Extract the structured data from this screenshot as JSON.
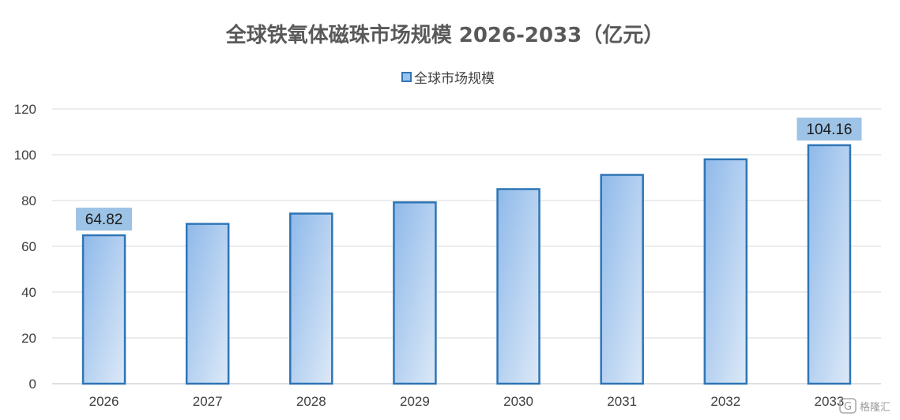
{
  "chart_data": {
    "type": "bar",
    "title": "全球铁氧体磁珠市场规模 2026-2033（亿元）",
    "xlabel": "",
    "ylabel": "",
    "categories": [
      "2026",
      "2027",
      "2028",
      "2029",
      "2030",
      "2031",
      "2032",
      "2033"
    ],
    "series": [
      {
        "name": "全球市场规模",
        "values": [
          64.82,
          69.8,
          74.3,
          79.2,
          85.0,
          91.2,
          98.0,
          104.16
        ],
        "color": "#2e75b6",
        "fill_top": "#8fb9ea",
        "fill_bottom": "#dce9f7"
      }
    ],
    "data_labels": [
      {
        "index": 0,
        "text": "64.82"
      },
      {
        "index": 7,
        "text": "104.16"
      }
    ],
    "ylim": [
      0,
      120
    ],
    "yticks": [
      0,
      20,
      40,
      60,
      80,
      100,
      120
    ],
    "grid": true,
    "legend_position": "top-center"
  },
  "watermark": "格隆汇"
}
